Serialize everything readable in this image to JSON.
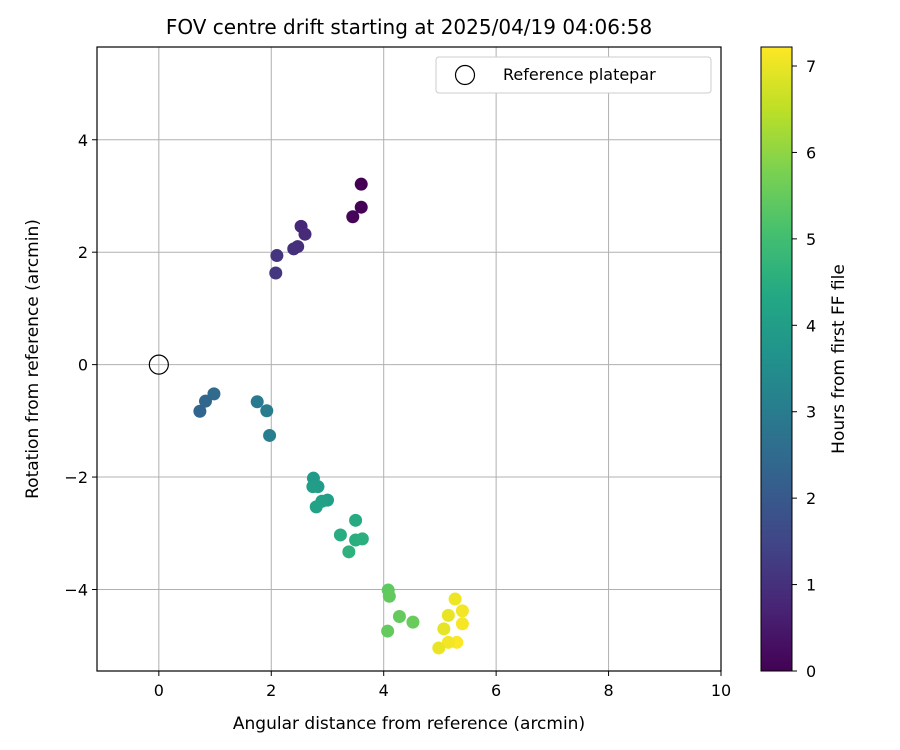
{
  "chart_data": {
    "type": "scatter",
    "title": "FOV centre drift starting at 2025/04/19 04:06:58",
    "xlabel": "Angular distance from reference (arcmin)",
    "ylabel": "Rotation from reference (arcmin)",
    "xlim": [
      -1.1,
      10.0
    ],
    "ylim": [
      -5.45,
      5.65
    ],
    "x_ticks": [
      0,
      2,
      4,
      6,
      8,
      10
    ],
    "y_ticks": [
      -4,
      -2,
      0,
      2,
      4
    ],
    "grid": true,
    "legend": {
      "placement": "top-right",
      "entries": [
        {
          "label": "Reference platepar",
          "marker": "open-circle",
          "color": "#000000"
        }
      ]
    },
    "colorbar": {
      "label": "Hours from first FF file",
      "colormap": "viridis",
      "range": [
        0,
        7.22
      ],
      "ticks": [
        0,
        1,
        2,
        3,
        4,
        5,
        6,
        7
      ]
    },
    "reference_point": {
      "x": 0,
      "y": 0
    },
    "points": [
      {
        "x": 3.6,
        "y": 3.21,
        "hours": 0.0
      },
      {
        "x": 3.6,
        "y": 2.8,
        "hours": 0.05
      },
      {
        "x": 3.45,
        "y": 2.63,
        "hours": 0.1
      },
      {
        "x": 2.53,
        "y": 2.46,
        "hours": 0.8
      },
      {
        "x": 2.6,
        "y": 2.32,
        "hours": 0.85
      },
      {
        "x": 2.47,
        "y": 2.1,
        "hours": 0.95
      },
      {
        "x": 2.4,
        "y": 2.06,
        "hours": 1.0
      },
      {
        "x": 2.1,
        "y": 1.94,
        "hours": 1.1
      },
      {
        "x": 2.08,
        "y": 1.63,
        "hours": 1.15
      },
      {
        "x": 0.98,
        "y": -0.52,
        "hours": 2.5
      },
      {
        "x": 0.83,
        "y": -0.65,
        "hours": 2.4
      },
      {
        "x": 0.73,
        "y": -0.83,
        "hours": 2.35
      },
      {
        "x": 1.75,
        "y": -0.66,
        "hours": 2.95
      },
      {
        "x": 1.92,
        "y": -0.82,
        "hours": 3.0
      },
      {
        "x": 1.97,
        "y": -1.26,
        "hours": 3.05
      },
      {
        "x": 2.75,
        "y": -2.02,
        "hours": 3.9
      },
      {
        "x": 2.83,
        "y": -2.17,
        "hours": 3.95
      },
      {
        "x": 2.74,
        "y": -2.17,
        "hours": 4.0
      },
      {
        "x": 3.0,
        "y": -2.41,
        "hours": 4.05
      },
      {
        "x": 2.9,
        "y": -2.43,
        "hours": 4.1
      },
      {
        "x": 2.8,
        "y": -2.53,
        "hours": 4.15
      },
      {
        "x": 3.5,
        "y": -2.77,
        "hours": 4.4
      },
      {
        "x": 3.23,
        "y": -3.03,
        "hours": 4.45
      },
      {
        "x": 3.5,
        "y": -3.12,
        "hours": 4.5
      },
      {
        "x": 3.62,
        "y": -3.1,
        "hours": 4.55
      },
      {
        "x": 3.38,
        "y": -3.33,
        "hours": 4.6
      },
      {
        "x": 4.08,
        "y": -4.01,
        "hours": 5.4
      },
      {
        "x": 4.1,
        "y": -4.12,
        "hours": 5.45
      },
      {
        "x": 4.28,
        "y": -4.48,
        "hours": 5.5
      },
      {
        "x": 4.52,
        "y": -4.58,
        "hours": 5.55
      },
      {
        "x": 4.07,
        "y": -4.74,
        "hours": 5.5
      },
      {
        "x": 5.27,
        "y": -4.17,
        "hours": 7.05
      },
      {
        "x": 5.4,
        "y": -4.38,
        "hours": 7.1
      },
      {
        "x": 5.15,
        "y": -4.46,
        "hours": 7.0
      },
      {
        "x": 5.4,
        "y": -4.61,
        "hours": 7.15
      },
      {
        "x": 5.07,
        "y": -4.7,
        "hours": 6.95
      },
      {
        "x": 5.3,
        "y": -4.94,
        "hours": 7.2
      },
      {
        "x": 5.15,
        "y": -4.94,
        "hours": 7.1
      },
      {
        "x": 4.98,
        "y": -5.04,
        "hours": 7.0
      }
    ]
  }
}
